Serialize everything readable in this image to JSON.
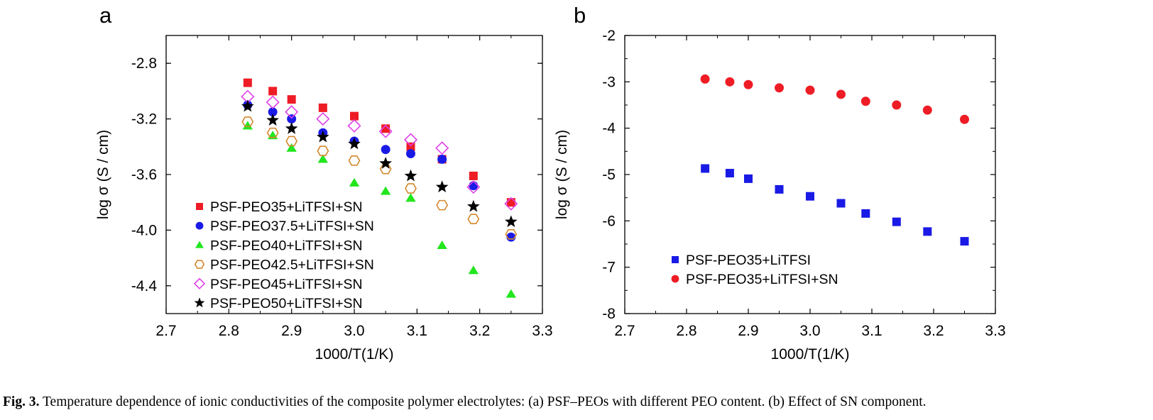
{
  "chart_data": [
    {
      "type": "scatter",
      "panel": "a",
      "xlabel": "1000/T(1/K)",
      "ylabel": "log σ (S / cm)",
      "xlim": [
        2.7,
        3.3
      ],
      "ylim": [
        -4.6,
        -2.6
      ],
      "xticks": [
        "2.7",
        "2.8",
        "2.9",
        "3.0",
        "3.1",
        "3.2",
        "3.3"
      ],
      "yticks": [
        "-2.8",
        "-3.2",
        "-3.6",
        "-4.0",
        "-4.4"
      ],
      "yticks_values": [
        -2.8,
        -3.2,
        -3.6,
        -4.0,
        -4.4
      ],
      "xticks_values": [
        2.7,
        2.8,
        2.9,
        3.0,
        3.1,
        3.2,
        3.3
      ],
      "grid": false,
      "legend_position": "bottom-left",
      "series": [
        {
          "name": "PSF-PEO35+LiTFSI+SN",
          "marker": "square",
          "color": "#ee1c25",
          "x": [
            2.83,
            2.87,
            2.9,
            2.95,
            3.0,
            3.05,
            3.09,
            3.14,
            3.19,
            3.25
          ],
          "y": [
            -2.94,
            -3.0,
            -3.06,
            -3.12,
            -3.18,
            -3.27,
            -3.4,
            -3.49,
            -3.61,
            -3.8
          ]
        },
        {
          "name": "PSF-PEO37.5+LiTFSI+SN",
          "marker": "circle",
          "color": "#1a1ae6",
          "x": [
            2.83,
            2.87,
            2.9,
            2.95,
            3.0,
            3.05,
            3.09,
            3.14,
            3.19,
            3.25
          ],
          "y": [
            -3.1,
            -3.15,
            -3.2,
            -3.3,
            -3.36,
            -3.42,
            -3.45,
            -3.49,
            -3.68,
            -4.05
          ]
        },
        {
          "name": "PSF-PEO40+LiTFSI+SN",
          "marker": "triangle",
          "color": "#22e61e",
          "x": [
            2.83,
            2.87,
            2.9,
            2.95,
            3.0,
            3.05,
            3.09,
            3.14,
            3.19,
            3.25
          ],
          "y": [
            -3.25,
            -3.32,
            -3.41,
            -3.49,
            -3.66,
            -3.72,
            -3.77,
            -4.11,
            -4.29,
            -4.46
          ]
        },
        {
          "name": "PSF-PEO42.5+LiTFSI+SN",
          "marker": "hexagon-open",
          "color": "#d4882c",
          "x": [
            2.83,
            2.87,
            2.9,
            2.95,
            3.0,
            3.05,
            3.09,
            3.14,
            3.19,
            3.25
          ],
          "y": [
            -3.22,
            -3.3,
            -3.36,
            -3.43,
            -3.5,
            -3.56,
            -3.7,
            -3.82,
            -3.92,
            -4.03
          ]
        },
        {
          "name": "PSF-PEO45+LiTFSI+SN",
          "marker": "diamond-open",
          "color": "#e040e8",
          "x": [
            2.83,
            2.87,
            2.9,
            2.95,
            3.0,
            3.05,
            3.09,
            3.14,
            3.19,
            3.25
          ],
          "y": [
            -3.04,
            -3.08,
            -3.15,
            -3.2,
            -3.25,
            -3.29,
            -3.35,
            -3.41,
            -3.69,
            -3.81
          ]
        },
        {
          "name": "PSF-PEO50+LiTFSI+SN",
          "marker": "star",
          "color": "#000000",
          "x": [
            2.83,
            2.87,
            2.9,
            2.95,
            3.0,
            3.05,
            3.09,
            3.14,
            3.19,
            3.25
          ],
          "y": [
            -3.11,
            -3.21,
            -3.27,
            -3.33,
            -3.38,
            -3.52,
            -3.61,
            -3.69,
            -3.83,
            -3.94
          ]
        }
      ]
    },
    {
      "type": "scatter",
      "panel": "b",
      "xlabel": "1000/T(1/K)",
      "ylabel": "log σ (S / cm)",
      "xlim": [
        2.7,
        3.3
      ],
      "ylim": [
        -8,
        -2
      ],
      "xticks": [
        "2.7",
        "2.8",
        "2.9",
        "3.0",
        "3.1",
        "3.2",
        "3.3"
      ],
      "yticks": [
        "-2",
        "-3",
        "-4",
        "-5",
        "-6",
        "-7",
        "-8"
      ],
      "yticks_values": [
        -2,
        -3,
        -4,
        -5,
        -6,
        -7,
        -8
      ],
      "xticks_values": [
        2.7,
        2.8,
        2.9,
        3.0,
        3.1,
        3.2,
        3.3
      ],
      "grid": false,
      "legend_position": "bottom-left",
      "series": [
        {
          "name": "PSF-PEO35+LiTFSI",
          "marker": "square",
          "color": "#1a1ae6",
          "x": [
            2.83,
            2.87,
            2.9,
            2.95,
            3.0,
            3.05,
            3.09,
            3.14,
            3.19,
            3.25
          ],
          "y": [
            -4.87,
            -4.97,
            -5.09,
            -5.32,
            -5.47,
            -5.62,
            -5.84,
            -6.02,
            -6.23,
            -6.44
          ]
        },
        {
          "name": "PSF-PEO35+LiTFSI+SN",
          "marker": "circle",
          "color": "#ee1c25",
          "x": [
            2.83,
            2.87,
            2.9,
            2.95,
            3.0,
            3.05,
            3.09,
            3.14,
            3.19,
            3.25
          ],
          "y": [
            -2.94,
            -3.0,
            -3.06,
            -3.13,
            -3.18,
            -3.27,
            -3.42,
            -3.5,
            -3.61,
            -3.81
          ]
        }
      ]
    }
  ],
  "panel_labels": {
    "a": "a",
    "b": "b"
  },
  "caption": {
    "label": "Fig. 3.",
    "text": "Temperature dependence of ionic conductivities of the composite polymer electrolytes: (a) PSF–PEOs with different PEO content. (b) Effect of SN component."
  }
}
